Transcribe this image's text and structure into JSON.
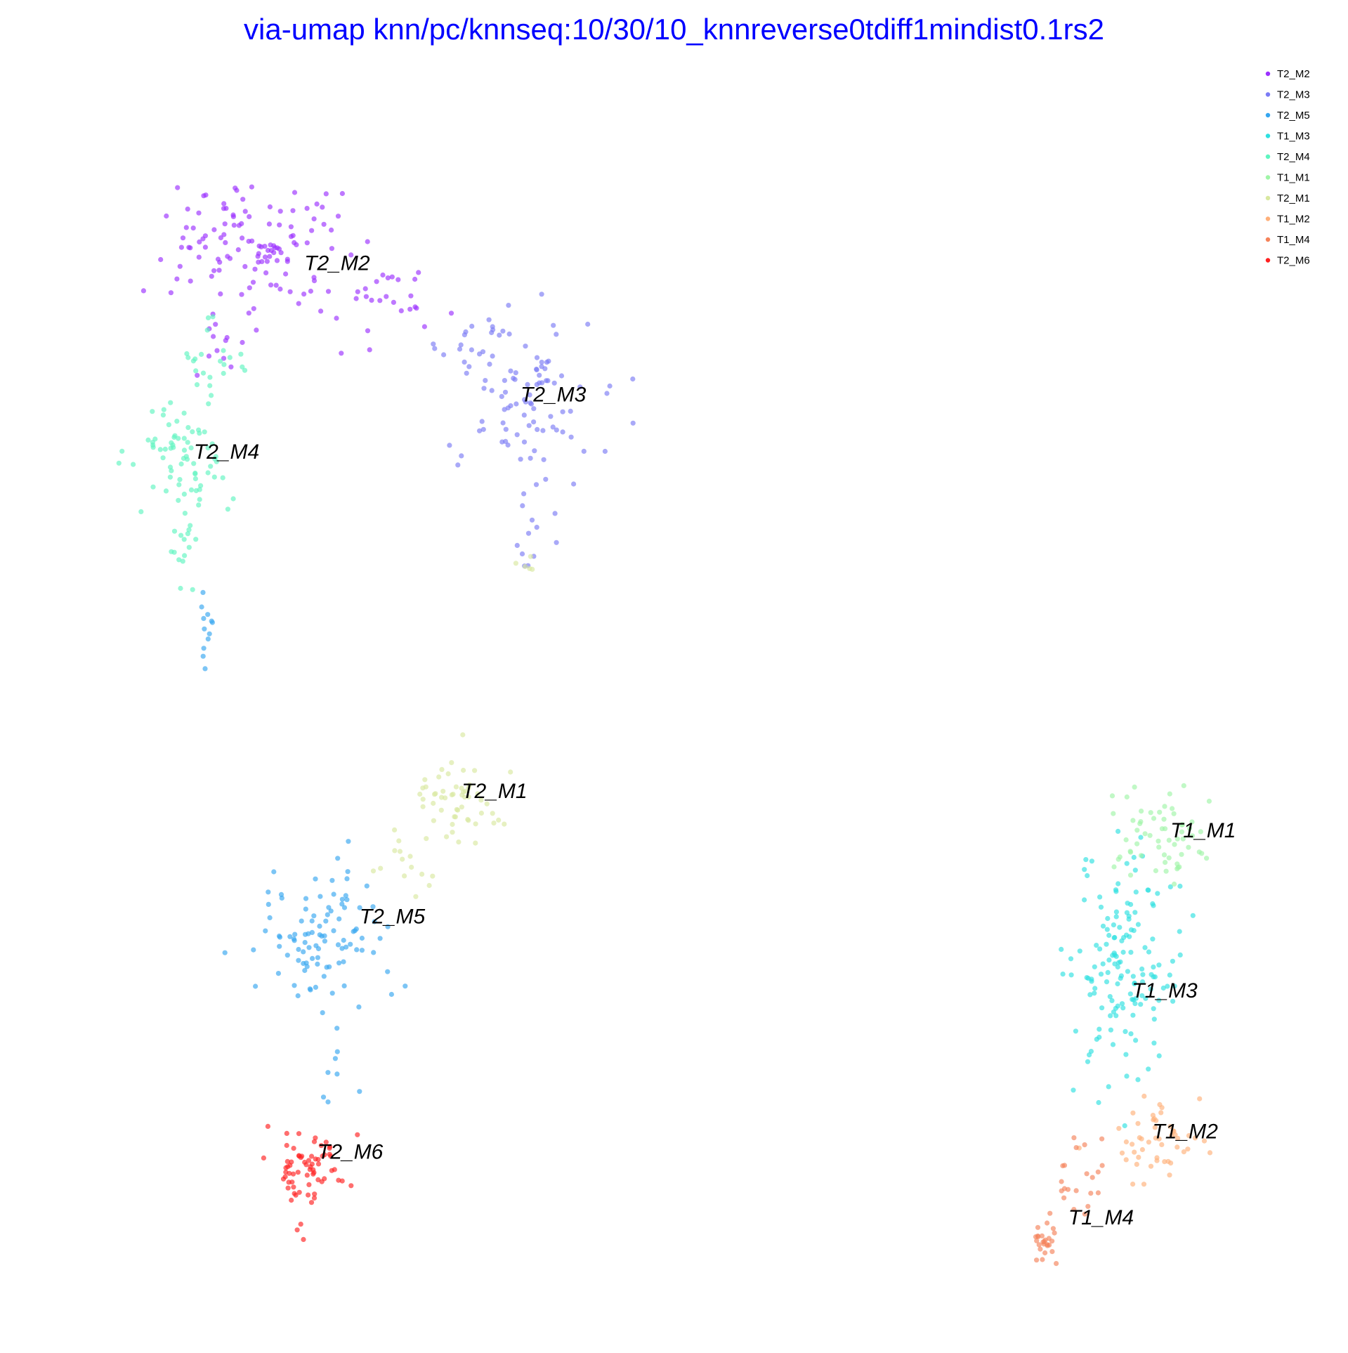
{
  "chart_data": {
    "type": "scatter",
    "title": "via-umap knn/pc/knnseq:10/30/10_knnreverse0tdiff1mindist0.1rs2",
    "xlabel": "",
    "ylabel": "",
    "xlim": [
      0,
      100
    ],
    "ylim": [
      0,
      100
    ],
    "grid": false,
    "axes_visible": false,
    "legend_position": "top-right",
    "point_opacity": 0.65,
    "series": [
      {
        "name": "T2_M2",
        "color": "#9b30ff",
        "label_at": [
          18.9,
          86.2
        ],
        "clusters": [
          {
            "cx": 14.5,
            "cy": 88.1,
            "sx": 3.6,
            "sy": 2.7,
            "n": 120
          },
          {
            "cx": 24.5,
            "cy": 83.5,
            "sx": 3.5,
            "sy": 1.5,
            "n": 30
          },
          {
            "cx": 11.8,
            "cy": 79.8,
            "sx": 1.2,
            "sy": 1.4,
            "n": 10
          }
        ]
      },
      {
        "name": "T2_M3",
        "color": "#7b7bf5",
        "label_at": [
          36.9,
          75.2
        ],
        "clusters": [
          {
            "cx": 37.0,
            "cy": 76.0,
            "sx": 3.0,
            "sy": 3.5,
            "n": 80
          },
          {
            "cx": 32.0,
            "cy": 80.2,
            "sx": 1.8,
            "sy": 1.2,
            "n": 15
          },
          {
            "cx": 38.2,
            "cy": 66.8,
            "sx": 0.9,
            "sy": 3.5,
            "n": 22
          }
        ]
      },
      {
        "name": "T2_M5",
        "color": "#35a6f0",
        "label_at": [
          23.5,
          31.5
        ],
        "clusters": [
          {
            "cx": 21.0,
            "cy": 30.8,
            "sx": 2.9,
            "sy": 3.0,
            "n": 100
          },
          {
            "cx": 10.8,
            "cy": 56.5,
            "sx": 0.35,
            "sy": 1.8,
            "n": 12
          },
          {
            "cx": 21.0,
            "cy": 19.5,
            "sx": 0.8,
            "sy": 1.5,
            "n": 8
          }
        ]
      },
      {
        "name": "T1_M3",
        "color": "#2ee0e0",
        "label_at": [
          87.8,
          25.3
        ],
        "clusters": [
          {
            "cx": 87.3,
            "cy": 27.5,
            "sx": 2.2,
            "sy": 5.0,
            "n": 150
          }
        ]
      },
      {
        "name": "T2_M4",
        "color": "#5ff5c0",
        "label_at": [
          9.7,
          70.4
        ],
        "clusters": [
          {
            "cx": 8.5,
            "cy": 70.5,
            "sx": 2.2,
            "sy": 2.2,
            "n": 70
          },
          {
            "cx": 11.0,
            "cy": 78.5,
            "sx": 1.2,
            "sy": 1.8,
            "n": 22
          },
          {
            "cx": 9.0,
            "cy": 63.0,
            "sx": 0.9,
            "sy": 1.6,
            "n": 16
          }
        ]
      },
      {
        "name": "T1_M1",
        "color": "#a0f5a8",
        "label_at": [
          91.0,
          38.7
        ],
        "clusters": [
          {
            "cx": 90.5,
            "cy": 38.8,
            "sx": 2.3,
            "sy": 2.0,
            "n": 60
          }
        ]
      },
      {
        "name": "T2_M1",
        "color": "#d8e8a0",
        "label_at": [
          32.0,
          42.0
        ],
        "clusters": [
          {
            "cx": 32.0,
            "cy": 41.8,
            "sx": 2.0,
            "sy": 1.8,
            "n": 55
          },
          {
            "cx": 27.5,
            "cy": 36.0,
            "sx": 1.5,
            "sy": 1.3,
            "n": 14
          },
          {
            "cx": 37.6,
            "cy": 61.5,
            "sx": 0.5,
            "sy": 0.4,
            "n": 5
          }
        ]
      },
      {
        "name": "T1_M2",
        "color": "#ffb07a",
        "label_at": [
          89.5,
          13.5
        ],
        "clusters": [
          {
            "cx": 90.0,
            "cy": 13.5,
            "sx": 2.3,
            "sy": 1.8,
            "n": 50
          }
        ]
      },
      {
        "name": "T1_M4",
        "color": "#f5835a",
        "label_at": [
          82.5,
          6.3
        ],
        "clusters": [
          {
            "cx": 80.7,
            "cy": 4.5,
            "sx": 0.6,
            "sy": 0.8,
            "n": 25
          },
          {
            "cx": 82.8,
            "cy": 10.0,
            "sx": 1.5,
            "sy": 2.0,
            "n": 22
          }
        ]
      },
      {
        "name": "T2_M6",
        "color": "#ff2020",
        "label_at": [
          20.0,
          11.8
        ],
        "clusters": [
          {
            "cx": 19.5,
            "cy": 10.7,
            "sx": 1.4,
            "sy": 2.3,
            "n": 70
          }
        ]
      }
    ]
  }
}
